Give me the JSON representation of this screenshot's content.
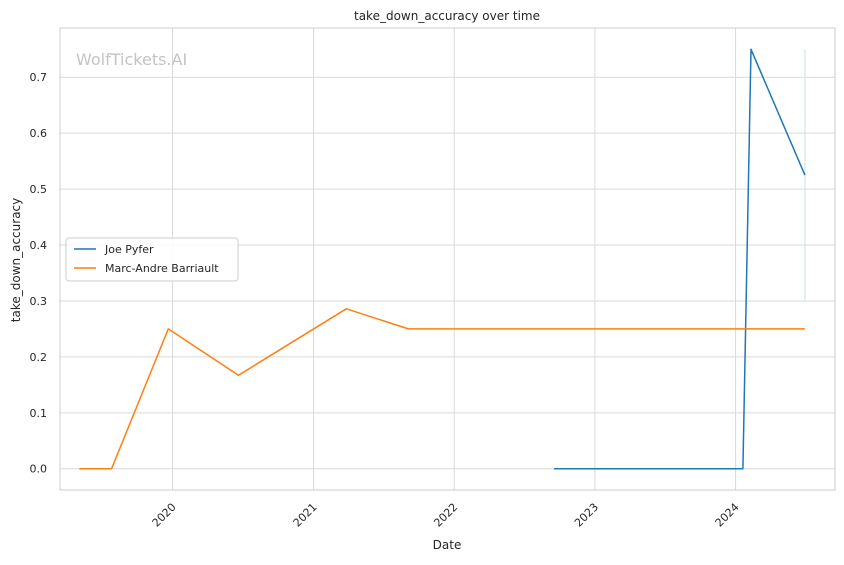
{
  "watermark": "WolfTickets.AI",
  "chart_data": {
    "type": "line",
    "title": "take_down_accuracy over time",
    "xlabel": "Date",
    "ylabel": "take_down_accuracy",
    "x_type": "date",
    "xlim": [
      "2019-03-15",
      "2024-09-15"
    ],
    "ylim": [
      -0.038,
      0.788
    ],
    "x_ticks": [
      "2020-01-01",
      "2021-01-01",
      "2022-01-01",
      "2023-01-01",
      "2024-01-01"
    ],
    "x_tick_labels": [
      "2020",
      "2021",
      "2022",
      "2023",
      "2024"
    ],
    "y_ticks": [
      0.0,
      0.1,
      0.2,
      0.3,
      0.4,
      0.5,
      0.6,
      0.7
    ],
    "y_tick_labels": [
      "0.0",
      "0.1",
      "0.2",
      "0.3",
      "0.4",
      "0.5",
      "0.6",
      "0.7"
    ],
    "grid": true,
    "legend_position": "center-left",
    "series": [
      {
        "name": "Joe Pyfer",
        "color": "#1f77b4",
        "points": [
          {
            "x": "2022-09-17",
            "y": 0.0
          },
          {
            "x": "2024-01-20",
            "y": 0.0
          },
          {
            "x": "2024-02-10",
            "y": 0.75
          },
          {
            "x": "2024-06-29",
            "y": 0.525
          }
        ]
      },
      {
        "name": "Marc-Andre Barriault",
        "color": "#ff7f0e",
        "points": [
          {
            "x": "2019-05-04",
            "y": 0.0
          },
          {
            "x": "2019-07-27",
            "y": 0.0
          },
          {
            "x": "2019-12-21",
            "y": 0.25
          },
          {
            "x": "2020-06-20",
            "y": 0.167
          },
          {
            "x": "2021-03-27",
            "y": 0.286
          },
          {
            "x": "2021-09-04",
            "y": 0.25
          },
          {
            "x": "2024-06-29",
            "y": 0.25
          }
        ]
      }
    ]
  }
}
